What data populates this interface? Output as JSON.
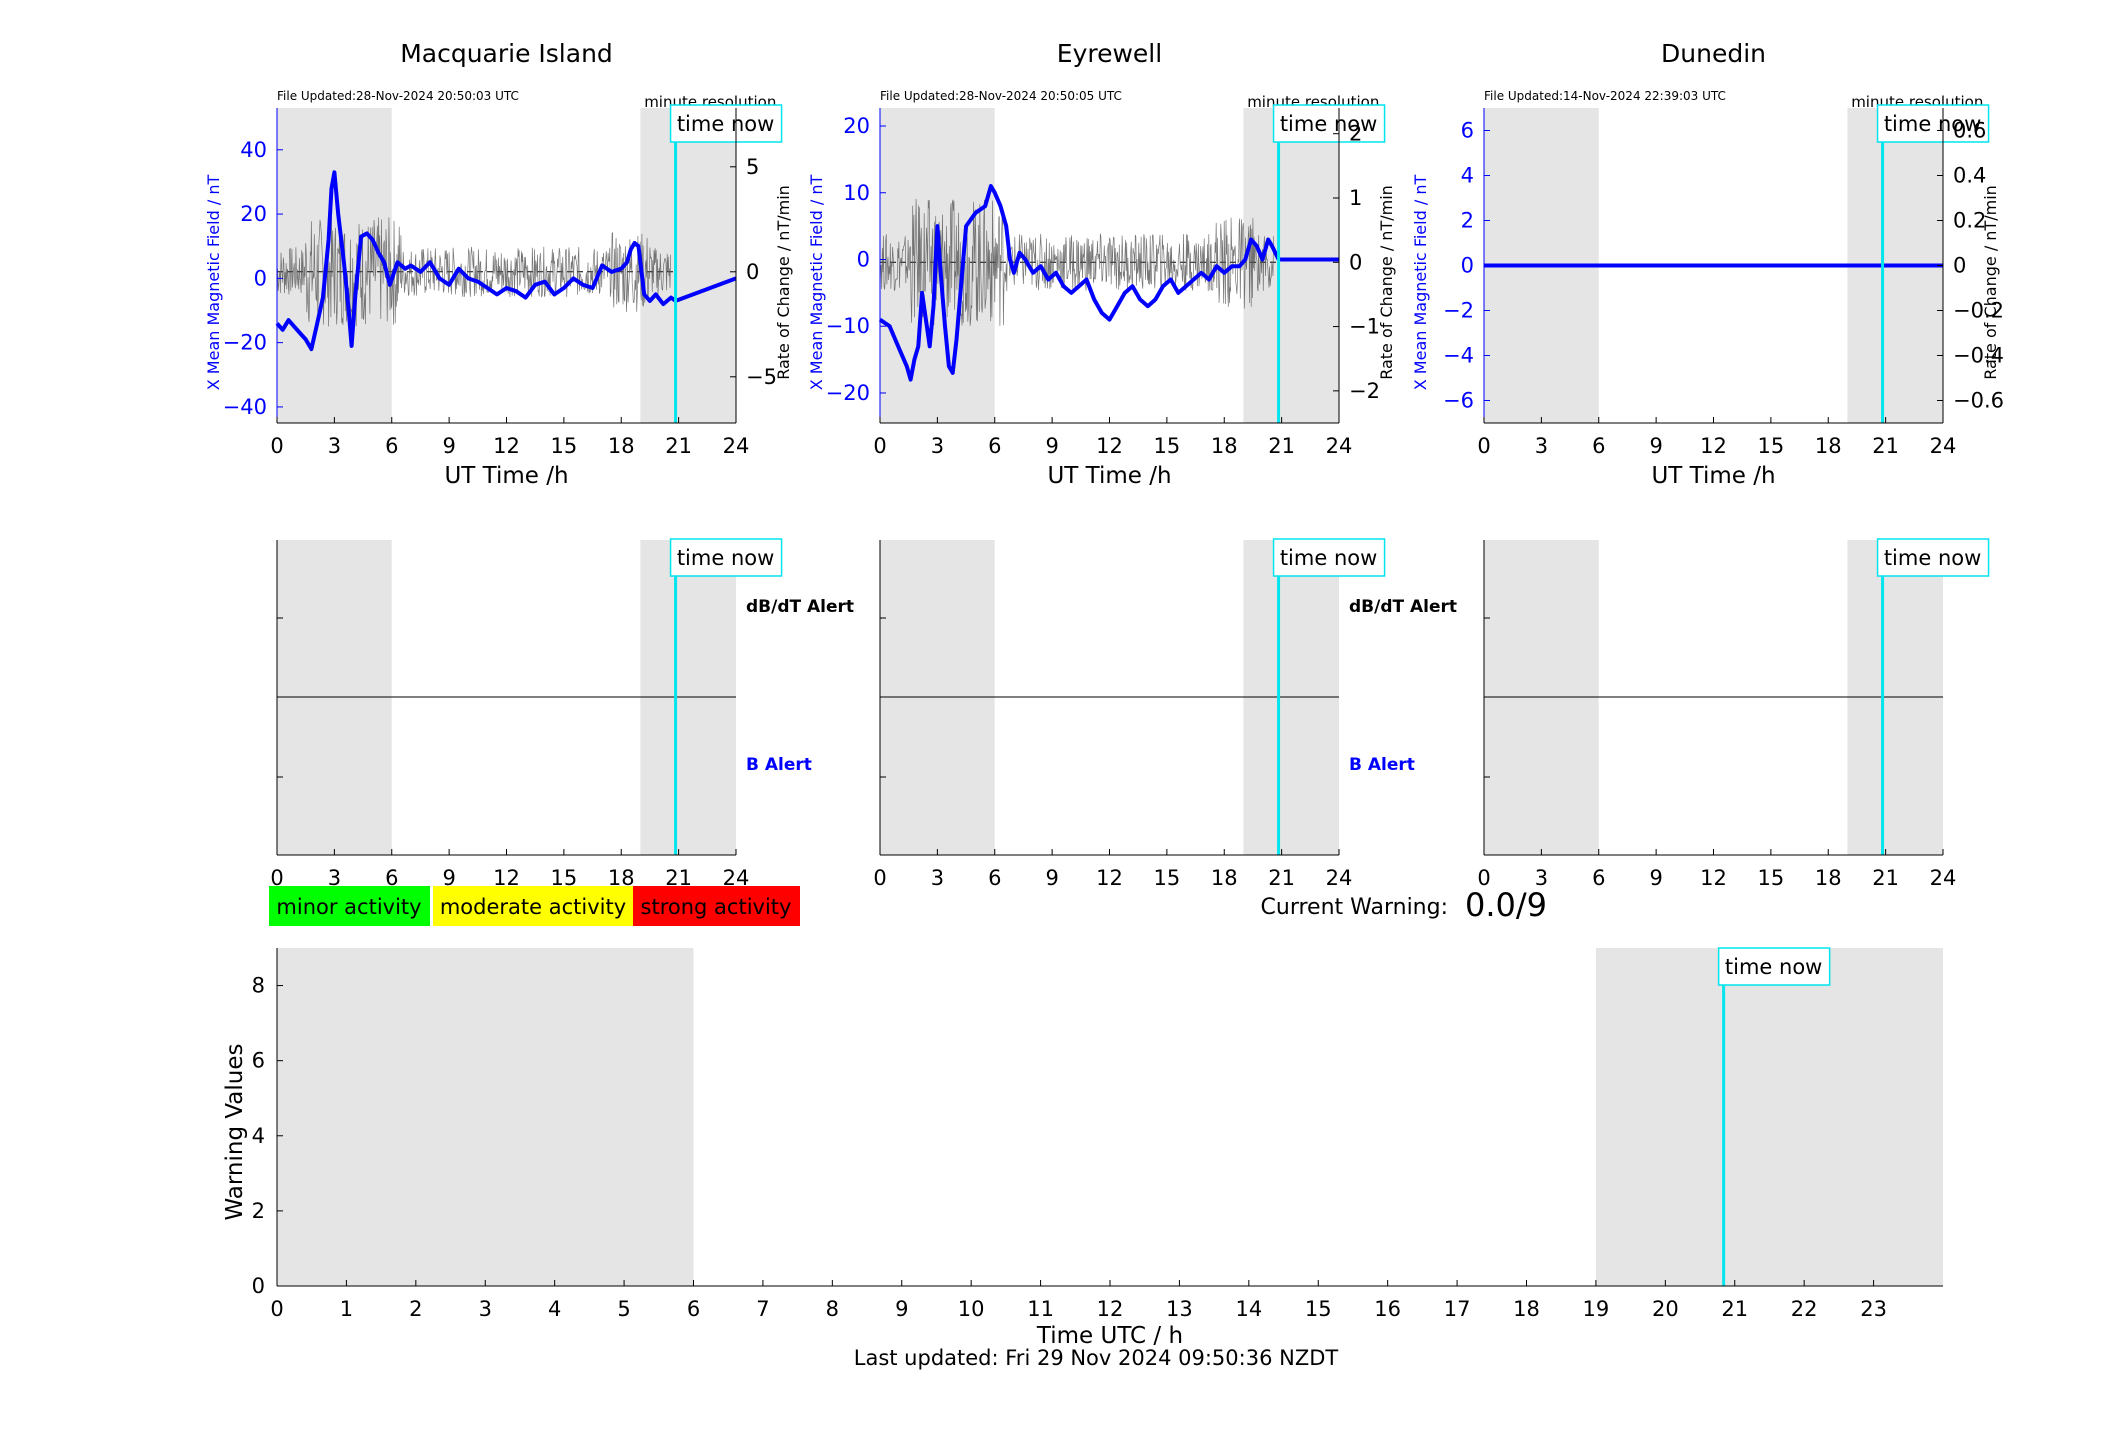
{
  "theme": {
    "background": "#ffffff",
    "field_color": "#0000ff",
    "rate_color": "#555555",
    "night_shade": "#e5e5e5",
    "now_color": "#00e5ee"
  },
  "labels": {
    "time_now": "time now",
    "minute_resolution": "minute resolution",
    "ut_time": "UT Time /h",
    "x_field_axis": "X Mean Magnetic Field / nT",
    "rate_axis": "Rate of Change / nT/min",
    "dbdt_alert": "dB/dT Alert",
    "b_alert": "B Alert",
    "current_warning_label": "Current Warning:",
    "current_warning_value": "0.0/9",
    "last_updated": "Last updated: Fri 29 Nov 2024 09:50:36 NZDT"
  },
  "legend": [
    {
      "label": "minor activity",
      "color": "#00ff00"
    },
    {
      "label": "moderate activity",
      "color": "#ffff00"
    },
    {
      "label": "strong activity",
      "color": "#ff0000"
    }
  ],
  "night_shading_hours": {
    "morning": [
      0,
      6
    ],
    "evening": [
      19,
      24
    ]
  },
  "time_now_hour": 20.84,
  "stations": [
    {
      "name": "Macquarie Island",
      "file_updated": "File Updated:28-Nov-2024 20:50:03 UTC"
    },
    {
      "name": "Eyrewell",
      "file_updated": "File Updated:28-Nov-2024 20:50:05 UTC"
    },
    {
      "name": "Dunedin",
      "file_updated": "File Updated:14-Nov-2024 22:39:03 UTC"
    }
  ],
  "chart_data": [
    {
      "type": "line",
      "title": "Macquarie Island",
      "xlabel": "UT Time /h",
      "ylabel": "X Mean Magnetic Field / nT",
      "ylabel_right": "Rate of Change / nT/min",
      "xlim": [
        0,
        24
      ],
      "ylim": [
        -45,
        53
      ],
      "ylim_right": [
        -7.2,
        7.8
      ],
      "xticks": [
        0,
        3,
        6,
        9,
        12,
        15,
        18,
        21,
        24
      ],
      "yticks": [
        -40,
        -20,
        0,
        20,
        40
      ],
      "yticks_right": [
        -5,
        0,
        5
      ],
      "series": [
        {
          "x": [
            0,
            0.3,
            0.6,
            0.9,
            1.2,
            1.5,
            1.8,
            2.1,
            2.4,
            2.7,
            2.85,
            3.0,
            3.2,
            3.5,
            3.75,
            3.9,
            4.1,
            4.4,
            4.7,
            5.0,
            5.3,
            5.6,
            5.9,
            6.3,
            6.7,
            7.0,
            7.5,
            8.0,
            8.5,
            9.0,
            9.5,
            10,
            10.5,
            11,
            11.5,
            12,
            12.5,
            13,
            13.5,
            14,
            14.5,
            15,
            15.5,
            16,
            16.5,
            17,
            17.5,
            18,
            18.3,
            18.5,
            18.7,
            18.9,
            19.2,
            19.5,
            19.8,
            20.2,
            20.6,
            20.84,
            24
          ],
          "values": [
            -14,
            -16,
            -13,
            -15,
            -17,
            -19,
            -22,
            -14,
            -6,
            12,
            28,
            33,
            20,
            5,
            -10,
            -21,
            -5,
            13,
            14,
            12,
            8,
            5,
            -2,
            5,
            3,
            4,
            2,
            5,
            0,
            -2,
            3,
            0,
            -1,
            -3,
            -5,
            -3,
            -4,
            -6,
            -2,
            -1,
            -5,
            -3,
            0,
            -2,
            -3,
            4,
            2,
            3,
            5,
            9,
            11,
            10,
            -5,
            -7,
            -5,
            -8,
            -6,
            -7,
            0
          ]
        }
      ]
    },
    {
      "type": "line",
      "title": "Eyrewell",
      "xlabel": "UT Time /h",
      "ylabel": "X Mean Magnetic Field / nT",
      "ylabel_right": "Rate of Change / nT/min",
      "xlim": [
        0,
        24
      ],
      "ylim": [
        -24.5,
        22.7
      ],
      "ylim_right": [
        -2.5,
        2.4
      ],
      "xticks": [
        0,
        3,
        6,
        9,
        12,
        15,
        18,
        21,
        24
      ],
      "yticks": [
        -20,
        -10,
        0,
        10,
        20
      ],
      "yticks_right": [
        -2,
        -1,
        0,
        1,
        2
      ],
      "series": [
        {
          "x": [
            0,
            0.5,
            0.8,
            1.1,
            1.4,
            1.6,
            1.8,
            2.0,
            2.2,
            2.4,
            2.6,
            2.8,
            3.0,
            3.2,
            3.4,
            3.6,
            3.8,
            4.0,
            4.5,
            5.0,
            5.5,
            5.8,
            6.0,
            6.3,
            6.6,
            6.8,
            7.0,
            7.3,
            7.6,
            8.0,
            8.4,
            8.8,
            9.2,
            9.6,
            10.0,
            10.4,
            10.8,
            11.2,
            11.6,
            12.0,
            12.4,
            12.8,
            13.2,
            13.6,
            14.0,
            14.4,
            14.8,
            15.2,
            15.6,
            16.0,
            16.4,
            16.8,
            17.2,
            17.6,
            18.0,
            18.4,
            18.8,
            19.1,
            19.4,
            19.7,
            20.0,
            20.3,
            20.5,
            20.84,
            24
          ],
          "values": [
            -9,
            -10,
            -12,
            -14,
            -16,
            -18,
            -15,
            -13,
            -5,
            -9,
            -13,
            -7,
            5,
            -3,
            -10,
            -16,
            -17,
            -12,
            5,
            7,
            8,
            11,
            10,
            8,
            5,
            0,
            -2,
            1,
            0,
            -2,
            -1,
            -3,
            -2,
            -4,
            -5,
            -4,
            -3,
            -6,
            -8,
            -9,
            -7,
            -5,
            -4,
            -6,
            -7,
            -6,
            -4,
            -3,
            -5,
            -4,
            -3,
            -2,
            -3,
            -1,
            -2,
            -1,
            -1,
            0,
            3,
            2,
            0,
            3,
            2,
            0,
            0
          ]
        }
      ]
    },
    {
      "type": "line",
      "title": "Dunedin",
      "xlabel": "UT Time /h",
      "ylabel": "X Mean Magnetic Field / nT",
      "ylabel_right": "Rate of Change / nT/min",
      "xlim": [
        0,
        24
      ],
      "ylim": [
        -7,
        7
      ],
      "ylim_right": [
        -0.7,
        0.7
      ],
      "xticks": [
        0,
        3,
        6,
        9,
        12,
        15,
        18,
        21,
        24
      ],
      "yticks": [
        -6,
        -4,
        -2,
        0,
        2,
        4,
        6
      ],
      "yticks_right": [
        -0.6,
        -0.4,
        -0.2,
        0,
        0.2,
        0.4,
        0.6
      ],
      "series": [
        {
          "x": [
            0,
            24
          ],
          "values": [
            0,
            0
          ]
        }
      ]
    },
    {
      "type": "line",
      "title": "",
      "xlabel": "Time UTC / h",
      "ylabel": "Warning Values",
      "xlim": [
        0,
        24
      ],
      "ylim": [
        0,
        9
      ],
      "xticks": [
        0,
        1,
        2,
        3,
        4,
        5,
        6,
        7,
        8,
        9,
        10,
        11,
        12,
        13,
        14,
        15,
        16,
        17,
        18,
        19,
        20,
        21,
        22,
        23
      ],
      "yticks": [
        0,
        2,
        4,
        6,
        8
      ],
      "series": []
    }
  ]
}
